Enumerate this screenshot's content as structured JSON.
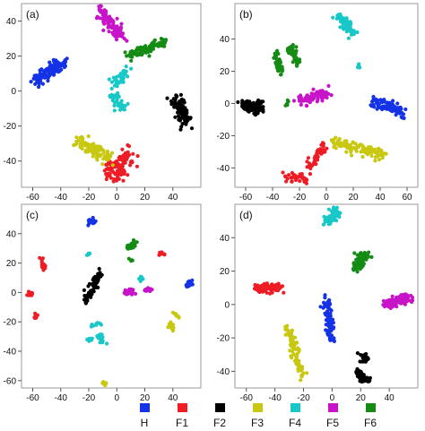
{
  "legend": [
    {
      "label": "H",
      "color": "#1432e6"
    },
    {
      "label": "F1",
      "color": "#ee1c24"
    },
    {
      "label": "F2",
      "color": "#000000"
    },
    {
      "label": "F3",
      "color": "#c8c810"
    },
    {
      "label": "F4",
      "color": "#18c8c8"
    },
    {
      "label": "F5",
      "color": "#c814c8"
    },
    {
      "label": "F6",
      "color": "#148c14"
    }
  ],
  "chart_data": [
    {
      "type": "scatter",
      "panel_label": "(a)",
      "xlim": [
        -68,
        60
      ],
      "ylim": [
        -55,
        50
      ],
      "xticks": [
        -60,
        -40,
        -20,
        0,
        20,
        40
      ],
      "yticks": [
        -40,
        -20,
        0,
        20,
        40
      ],
      "series": [
        {
          "name": "H",
          "color": "#1432e6",
          "clusters": [
            {
              "x": [
                -58,
                -38
              ],
              "y": [
                6,
                16
              ],
              "n": 130,
              "spread": 3.5
            }
          ]
        },
        {
          "name": "F1",
          "color": "#ee1c24",
          "clusters": [
            {
              "x": [
                -8,
                10
              ],
              "y": [
                -46,
                -36
              ],
              "n": 80,
              "spread": 5
            },
            {
              "x": [
                -2,
                6
              ],
              "y": [
                -50,
                -44
              ],
              "n": 30,
              "spread": 4
            }
          ]
        },
        {
          "name": "F2",
          "color": "#000000",
          "clusters": [
            {
              "x": [
                42,
                50
              ],
              "y": [
                -4,
                -18
              ],
              "n": 90,
              "spread": 4
            }
          ]
        },
        {
          "name": "F3",
          "color": "#c8c810",
          "clusters": [
            {
              "x": [
                -28,
                -14
              ],
              "y": [
                -28,
                -36
              ],
              "n": 60,
              "spread": 4
            },
            {
              "x": [
                -16,
                -4
              ],
              "y": [
                -34,
                -40
              ],
              "n": 30,
              "spread": 4
            }
          ]
        },
        {
          "name": "F4",
          "color": "#18c8c8",
          "clusters": [
            {
              "x": [
                -4,
                6
              ],
              "y": [
                -2,
                -10
              ],
              "n": 40,
              "spread": 3
            },
            {
              "x": [
                -2,
                8
              ],
              "y": [
                4,
                12
              ],
              "n": 40,
              "spread": 3
            }
          ]
        },
        {
          "name": "F5",
          "color": "#c814c8",
          "clusters": [
            {
              "x": [
                -12,
                4
              ],
              "y": [
                46,
                30
              ],
              "n": 100,
              "spread": 3.5
            }
          ]
        },
        {
          "name": "F6",
          "color": "#148c14",
          "clusters": [
            {
              "x": [
                8,
                34
              ],
              "y": [
                20,
                28
              ],
              "n": 100,
              "spread": 3
            }
          ]
        }
      ]
    },
    {
      "type": "scatter",
      "panel_label": "(b)",
      "xlim": [
        -68,
        68
      ],
      "ylim": [
        -52,
        62
      ],
      "xticks": [
        -60,
        -40,
        -20,
        0,
        20,
        40,
        60
      ],
      "yticks": [
        -40,
        -20,
        0,
        20,
        40
      ],
      "series": [
        {
          "name": "H",
          "color": "#1432e6",
          "clusters": [
            {
              "x": [
                36,
                56
              ],
              "y": [
                2,
                -6
              ],
              "n": 90,
              "spread": 3.5
            }
          ]
        },
        {
          "name": "F1",
          "color": "#ee1c24",
          "clusters": [
            {
              "x": [
                -30,
                -14
              ],
              "y": [
                -46,
                -46
              ],
              "n": 40,
              "spread": 3
            },
            {
              "x": [
                -14,
                0
              ],
              "y": [
                -40,
                -26
              ],
              "n": 40,
              "spread": 3
            }
          ]
        },
        {
          "name": "F2",
          "color": "#000000",
          "clusters": [
            {
              "x": [
                -62,
                -48
              ],
              "y": [
                -2,
                -2
              ],
              "n": 90,
              "spread": 3.5
            }
          ]
        },
        {
          "name": "F3",
          "color": "#c8c810",
          "clusters": [
            {
              "x": [
                4,
                44
              ],
              "y": [
                -24,
                -32
              ],
              "n": 110,
              "spread": 3
            }
          ]
        },
        {
          "name": "F4",
          "color": "#18c8c8",
          "clusters": [
            {
              "x": [
                10,
                20
              ],
              "y": [
                54,
                44
              ],
              "n": 70,
              "spread": 3
            },
            {
              "x": [
                24,
                24
              ],
              "y": [
                22,
                24
              ],
              "n": 6,
              "spread": 1
            }
          ]
        },
        {
          "name": "F5",
          "color": "#c814c8",
          "clusters": [
            {
              "x": [
                -20,
                0
              ],
              "y": [
                2,
                6
              ],
              "n": 80,
              "spread": 3.5
            }
          ]
        },
        {
          "name": "F6",
          "color": "#148c14",
          "clusters": [
            {
              "x": [
                -38,
                -34
              ],
              "y": [
                32,
                18
              ],
              "n": 40,
              "spread": 2.5
            },
            {
              "x": [
                -26,
                -22
              ],
              "y": [
                36,
                24
              ],
              "n": 45,
              "spread": 2.5
            },
            {
              "x": [
                -30,
                -28
              ],
              "y": [
                -2,
                2
              ],
              "n": 6,
              "spread": 1
            }
          ]
        }
      ]
    },
    {
      "type": "scatter",
      "panel_label": "(c)",
      "xlim": [
        -68,
        60
      ],
      "ylim": [
        -65,
        60
      ],
      "xticks": [
        -60,
        -40,
        -20,
        0,
        20,
        40
      ],
      "yticks": [
        -60,
        -40,
        -20,
        0,
        20,
        40
      ],
      "series": [
        {
          "name": "H",
          "color": "#1432e6",
          "clusters": [
            {
              "x": [
                -20,
                -16
              ],
              "y": [
                48,
                48
              ],
              "n": 25,
              "spread": 2
            },
            {
              "x": [
                50,
                54
              ],
              "y": [
                4,
                8
              ],
              "n": 18,
              "spread": 2
            }
          ]
        },
        {
          "name": "F1",
          "color": "#ee1c24",
          "clusters": [
            {
              "x": [
                -62,
                -62
              ],
              "y": [
                -1,
                -1
              ],
              "n": 12,
              "spread": 1.5
            },
            {
              "x": [
                -54,
                -52
              ],
              "y": [
                22,
                16
              ],
              "n": 12,
              "spread": 1.5
            },
            {
              "x": [
                -58,
                -58
              ],
              "y": [
                -16,
                -16
              ],
              "n": 8,
              "spread": 1.2
            },
            {
              "x": [
                30,
                34
              ],
              "y": [
                26,
                26
              ],
              "n": 10,
              "spread": 1.5
            }
          ]
        },
        {
          "name": "F2",
          "color": "#000000",
          "clusters": [
            {
              "x": [
                -22,
                -12
              ],
              "y": [
                -6,
                14
              ],
              "n": 60,
              "spread": 2.5
            }
          ]
        },
        {
          "name": "F3",
          "color": "#c8c810",
          "clusters": [
            {
              "x": [
                -10,
                -8
              ],
              "y": [
                -62,
                -62
              ],
              "n": 12,
              "spread": 1.5
            },
            {
              "x": [
                38,
                40
              ],
              "y": [
                -20,
                -26
              ],
              "n": 14,
              "spread": 1.5
            },
            {
              "x": [
                40,
                44
              ],
              "y": [
                -14,
                -18
              ],
              "n": 8,
              "spread": 1
            }
          ]
        },
        {
          "name": "F4",
          "color": "#18c8c8",
          "clusters": [
            {
              "x": [
                -20,
                -18
              ],
              "y": [
                -32,
                -32
              ],
              "n": 6,
              "spread": 1.2
            },
            {
              "x": [
                -14,
                -10
              ],
              "y": [
                -28,
                -34
              ],
              "n": 20,
              "spread": 2
            },
            {
              "x": [
                -18,
                -12
              ],
              "y": [
                -22,
                -22
              ],
              "n": 8,
              "spread": 1.2
            },
            {
              "x": [
                16,
                18
              ],
              "y": [
                10,
                8
              ],
              "n": 10,
              "spread": 1.5
            },
            {
              "x": [
                -20,
                -20
              ],
              "y": [
                26,
                26
              ],
              "n": 6,
              "spread": 1.2
            }
          ]
        },
        {
          "name": "F5",
          "color": "#c814c8",
          "clusters": [
            {
              "x": [
                6,
                12
              ],
              "y": [
                0,
                0
              ],
              "n": 30,
              "spread": 2
            },
            {
              "x": [
                20,
                24
              ],
              "y": [
                2,
                2
              ],
              "n": 14,
              "spread": 1.5
            }
          ]
        },
        {
          "name": "F6",
          "color": "#148c14",
          "clusters": [
            {
              "x": [
                8,
                14
              ],
              "y": [
                30,
                34
              ],
              "n": 30,
              "spread": 2
            },
            {
              "x": [
                10,
                10
              ],
              "y": [
                22,
                22
              ],
              "n": 6,
              "spread": 1
            }
          ]
        }
      ]
    },
    {
      "type": "scatter",
      "panel_label": "(d)",
      "xlim": [
        -68,
        60
      ],
      "ylim": [
        -50,
        60
      ],
      "xticks": [
        -60,
        -40,
        -20,
        0,
        20,
        40
      ],
      "yticks": [
        -40,
        -20,
        0,
        20,
        40
      ],
      "series": [
        {
          "name": "H",
          "color": "#1432e6",
          "clusters": [
            {
              "x": [
                -4,
                0
              ],
              "y": [
                4,
                -22
              ],
              "n": 80,
              "spread": 2.5
            }
          ]
        },
        {
          "name": "F1",
          "color": "#ee1c24",
          "clusters": [
            {
              "x": [
                -54,
                -36
              ],
              "y": [
                10,
                10
              ],
              "n": 90,
              "spread": 2.5
            }
          ]
        },
        {
          "name": "F2",
          "color": "#000000",
          "clusters": [
            {
              "x": [
                22,
                24
              ],
              "y": [
                -32,
                -32
              ],
              "n": 30,
              "spread": 2.5
            },
            {
              "x": [
                18,
                24
              ],
              "y": [
                -40,
                -46
              ],
              "n": 40,
              "spread": 2.5
            }
          ]
        },
        {
          "name": "F3",
          "color": "#c8c810",
          "clusters": [
            {
              "x": [
                -32,
                -24
              ],
              "y": [
                -14,
                -28
              ],
              "n": 40,
              "spread": 2.5
            },
            {
              "x": [
                -28,
                -20
              ],
              "y": [
                -30,
                -42
              ],
              "n": 40,
              "spread": 2.5
            }
          ]
        },
        {
          "name": "F4",
          "color": "#18c8c8",
          "clusters": [
            {
              "x": [
                -4,
                4
              ],
              "y": [
                50,
                56
              ],
              "n": 60,
              "spread": 3
            }
          ]
        },
        {
          "name": "F5",
          "color": "#c814c8",
          "clusters": [
            {
              "x": [
                38,
                54
              ],
              "y": [
                0,
                4
              ],
              "n": 80,
              "spread": 3
            }
          ]
        },
        {
          "name": "F6",
          "color": "#148c14",
          "clusters": [
            {
              "x": [
                16,
                24
              ],
              "y": [
                22,
                30
              ],
              "n": 70,
              "spread": 3
            }
          ]
        }
      ]
    }
  ]
}
